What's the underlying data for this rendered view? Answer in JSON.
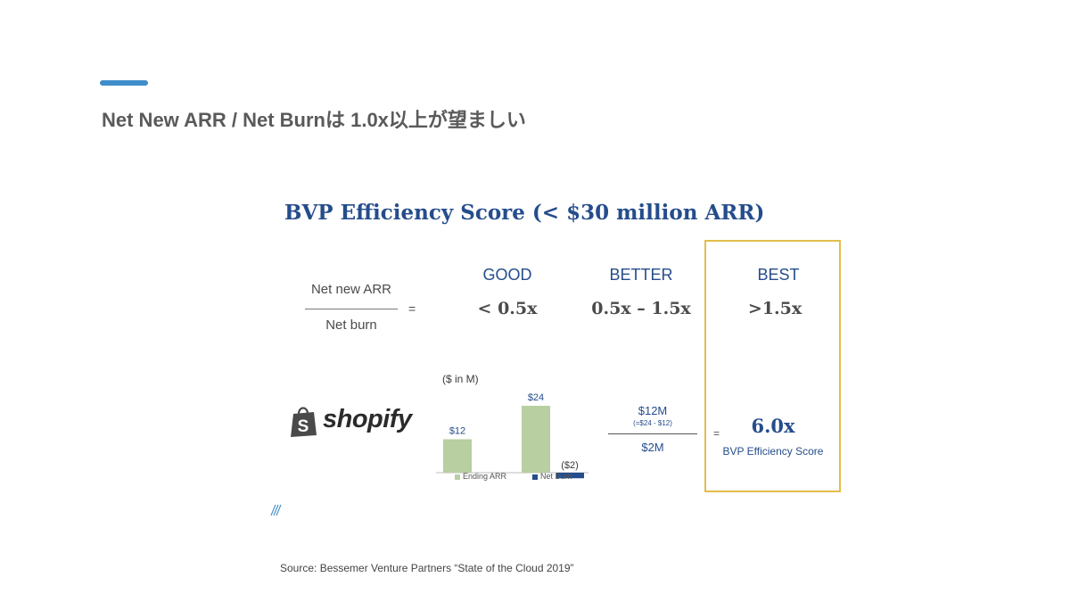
{
  "slide": {
    "title": "Net New ARR / Net Burnは 1.0x以上が望ましい",
    "source": "Source: Bessemer Venture Partners “State of the Cloud 2019”",
    "accent_color": "#3d8ec9"
  },
  "figure": {
    "title": "BVP Efficiency Score (< $30 million ARR)",
    "formula": {
      "numerator": "Net new ARR",
      "denominator": "Net burn",
      "equals": "="
    },
    "tiers": [
      {
        "label": "GOOD",
        "range": "< 0.5x"
      },
      {
        "label": "BETTER",
        "range": "0.5x – 1.5x"
      },
      {
        "label": "BEST",
        "range": ">1.5x"
      }
    ],
    "highlight_color": "#e3bd4a",
    "example": {
      "company": "shopify",
      "logo_icon": "shopping-bag-icon",
      "calc_numerator": "$12M",
      "calc_note": "(=$24 - $12)",
      "calc_denominator": "$2M",
      "equals": "=",
      "score": "6.0x",
      "score_label": "BVP Efficiency Score"
    },
    "brand_mark_icon": "bvp-slash-icon"
  },
  "chart_data": {
    "type": "bar",
    "unit_label": "($ in M)",
    "bars": [
      {
        "label": "$12",
        "value": 12,
        "series": "Ending ARR"
      },
      {
        "label": "$24",
        "value": 24,
        "series": "Ending ARR"
      },
      {
        "label": "($2)",
        "value": -2,
        "series": "Net Burn"
      }
    ],
    "legend": [
      {
        "name": "Ending ARR",
        "color": "#b7cfa1"
      },
      {
        "name": "Net Burn",
        "color": "#254d8c"
      }
    ],
    "ylim": [
      -2,
      24
    ]
  }
}
